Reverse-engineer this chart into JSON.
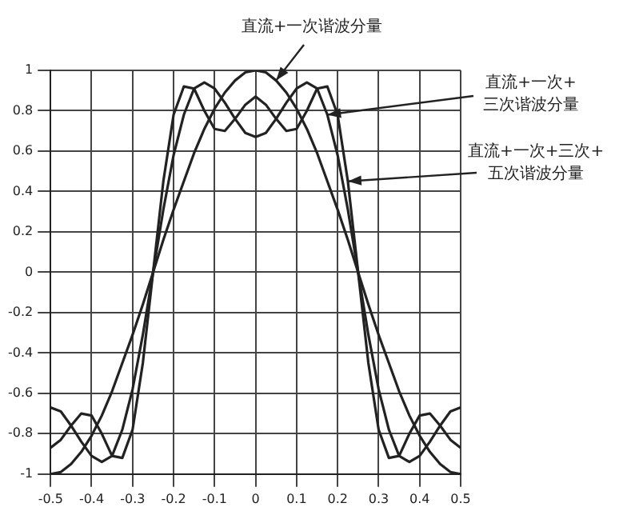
{
  "chart_data": {
    "type": "line",
    "x": [
      -0.5,
      -0.475,
      -0.45,
      -0.425,
      -0.4,
      -0.375,
      -0.35,
      -0.325,
      -0.3,
      -0.275,
      -0.25,
      -0.225,
      -0.2,
      -0.175,
      -0.15,
      -0.125,
      -0.1,
      -0.075,
      -0.05,
      -0.025,
      0,
      0.025,
      0.05,
      0.075,
      0.1,
      0.125,
      0.15,
      0.175,
      0.2,
      0.225,
      0.25,
      0.275,
      0.3,
      0.325,
      0.35,
      0.375,
      0.4,
      0.425,
      0.45,
      0.475,
      0.5
    ],
    "series": [
      {
        "name": "直流+一次谐波分量",
        "color": "#222222",
        "values": [
          -1,
          -0.99,
          -0.95,
          -0.89,
          -0.81,
          -0.71,
          -0.59,
          -0.45,
          -0.31,
          -0.16,
          0,
          0.16,
          0.31,
          0.45,
          0.59,
          0.71,
          0.81,
          0.89,
          0.95,
          0.99,
          1,
          0.99,
          0.95,
          0.89,
          0.81,
          0.71,
          0.59,
          0.45,
          0.31,
          0.16,
          0,
          -0.16,
          -0.31,
          -0.45,
          -0.59,
          -0.71,
          -0.81,
          -0.89,
          -0.95,
          -0.99,
          -1
        ]
      },
      {
        "name": "直流+一次+三次谐波分量",
        "color": "#222222",
        "values": [
          -0.67,
          -0.69,
          -0.76,
          -0.84,
          -0.91,
          -0.94,
          -0.91,
          -0.78,
          -0.58,
          -0.31,
          0,
          0.31,
          0.58,
          0.78,
          0.91,
          0.94,
          0.91,
          0.84,
          0.76,
          0.69,
          0.67,
          0.69,
          0.76,
          0.84,
          0.91,
          0.94,
          0.91,
          0.78,
          0.58,
          0.31,
          0,
          -0.31,
          -0.58,
          -0.78,
          -0.91,
          -0.94,
          -0.91,
          -0.84,
          -0.76,
          -0.69,
          -0.67
        ]
      },
      {
        "name": "直流+一次+三次+五次谐波分量",
        "color": "#222222",
        "values": [
          -0.87,
          -0.83,
          -0.76,
          -0.7,
          -0.71,
          -0.8,
          -0.91,
          -0.92,
          -0.78,
          -0.45,
          0,
          0.45,
          0.78,
          0.92,
          0.91,
          0.8,
          0.71,
          0.7,
          0.76,
          0.83,
          0.87,
          0.83,
          0.76,
          0.7,
          0.71,
          0.8,
          0.91,
          0.92,
          0.78,
          0.45,
          0,
          -0.45,
          -0.78,
          -0.92,
          -0.91,
          -0.8,
          -0.71,
          -0.7,
          -0.76,
          -0.83,
          -0.87
        ]
      }
    ],
    "xlim": [
      -0.5,
      0.5
    ],
    "xticks": [
      -0.5,
      -0.4,
      -0.3,
      -0.2,
      -0.1,
      0,
      0.1,
      0.2,
      0.3,
      0.4,
      0.5
    ],
    "ylim": [
      -1,
      1
    ],
    "yticks": [
      -1,
      -0.8,
      -0.6,
      -0.4,
      -0.2,
      0,
      0.2,
      0.4,
      0.6,
      0.8,
      1
    ],
    "grid": true,
    "legend": false,
    "marker": "none",
    "line_style": "solid"
  }
}
